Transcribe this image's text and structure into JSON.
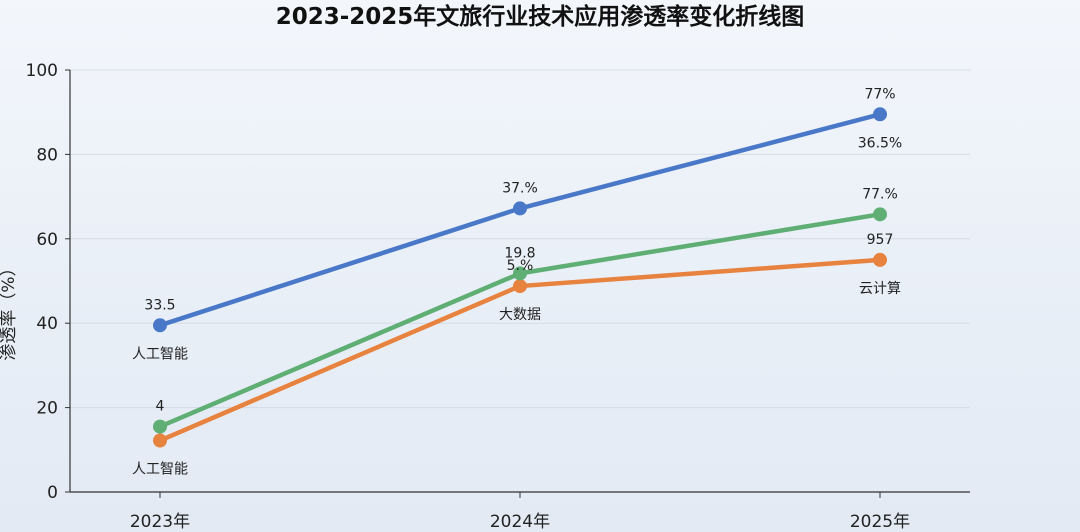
{
  "chart_data": {
    "type": "line",
    "title": "2023-2025年文旅行业技术应用渗透率变化折线图",
    "xlabel": "",
    "ylabel": "渗透率（%）",
    "categories": [
      "2023年",
      "2024年",
      "2025年"
    ],
    "ylim": [
      0,
      100
    ],
    "yticks": [
      0,
      20,
      40,
      60,
      80,
      100
    ],
    "grid": true,
    "legend": "none",
    "series": [
      {
        "values": [
          39.5,
          67.2,
          89.5
        ],
        "color": "#4a78c9",
        "labels_above": [
          "33.5",
          "37.%",
          "77%"
        ],
        "labels_below": [
          "人工智能",
          "",
          "36.5%"
        ]
      },
      {
        "values": [
          15.5,
          51.8,
          65.8
        ],
        "color": "#5fae74",
        "labels_above": [
          "4",
          "19.8",
          "77.%"
        ],
        "labels_below": [
          "",
          "",
          ""
        ]
      },
      {
        "values": [
          12.2,
          48.8,
          55.0
        ],
        "color": "#e8823f",
        "labels_above": [
          "",
          "5.%",
          "957"
        ],
        "labels_below": [
          "人工智能",
          "大数据",
          "云计算"
        ]
      }
    ]
  }
}
